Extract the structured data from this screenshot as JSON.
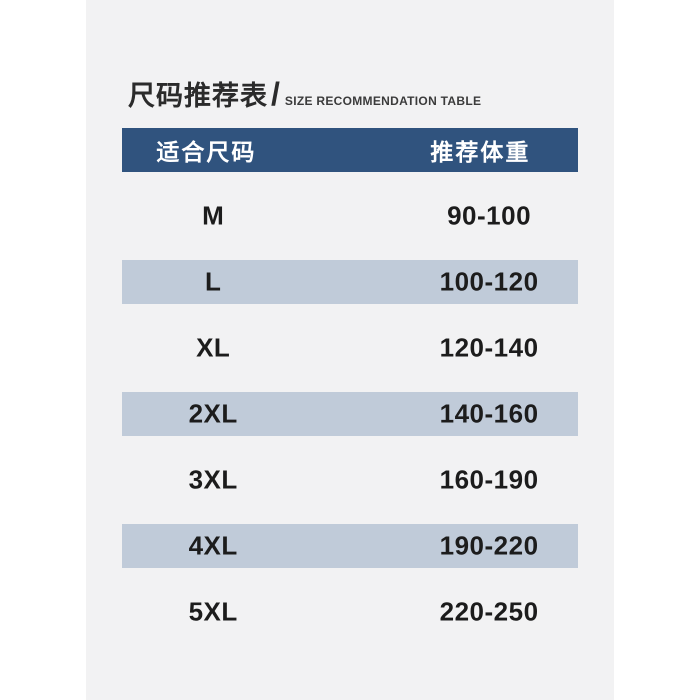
{
  "title": {
    "cn": "尺码推荐表",
    "divider": "/",
    "en": "SIZE RECOMMENDATION TABLE"
  },
  "table": {
    "headers": {
      "size": "适合尺码",
      "weight": "推荐体重"
    },
    "rows": [
      {
        "size": "M",
        "weight": "90-100"
      },
      {
        "size": "L",
        "weight": "100-120"
      },
      {
        "size": "XL",
        "weight": "120-140"
      },
      {
        "size": "2XL",
        "weight": "140-160"
      },
      {
        "size": "3XL",
        "weight": "160-190"
      },
      {
        "size": "4XL",
        "weight": "190-220"
      },
      {
        "size": "5XL",
        "weight": "220-250"
      }
    ]
  },
  "colors": {
    "page_bg": "#ffffff",
    "panel_bg": "#f2f2f3",
    "header_bg": "#30537e",
    "header_text": "#ffffff",
    "alt_row_bg": "#c0cbd9",
    "title_text": "#2b2b2b",
    "row_text": "#1c1c1c"
  }
}
